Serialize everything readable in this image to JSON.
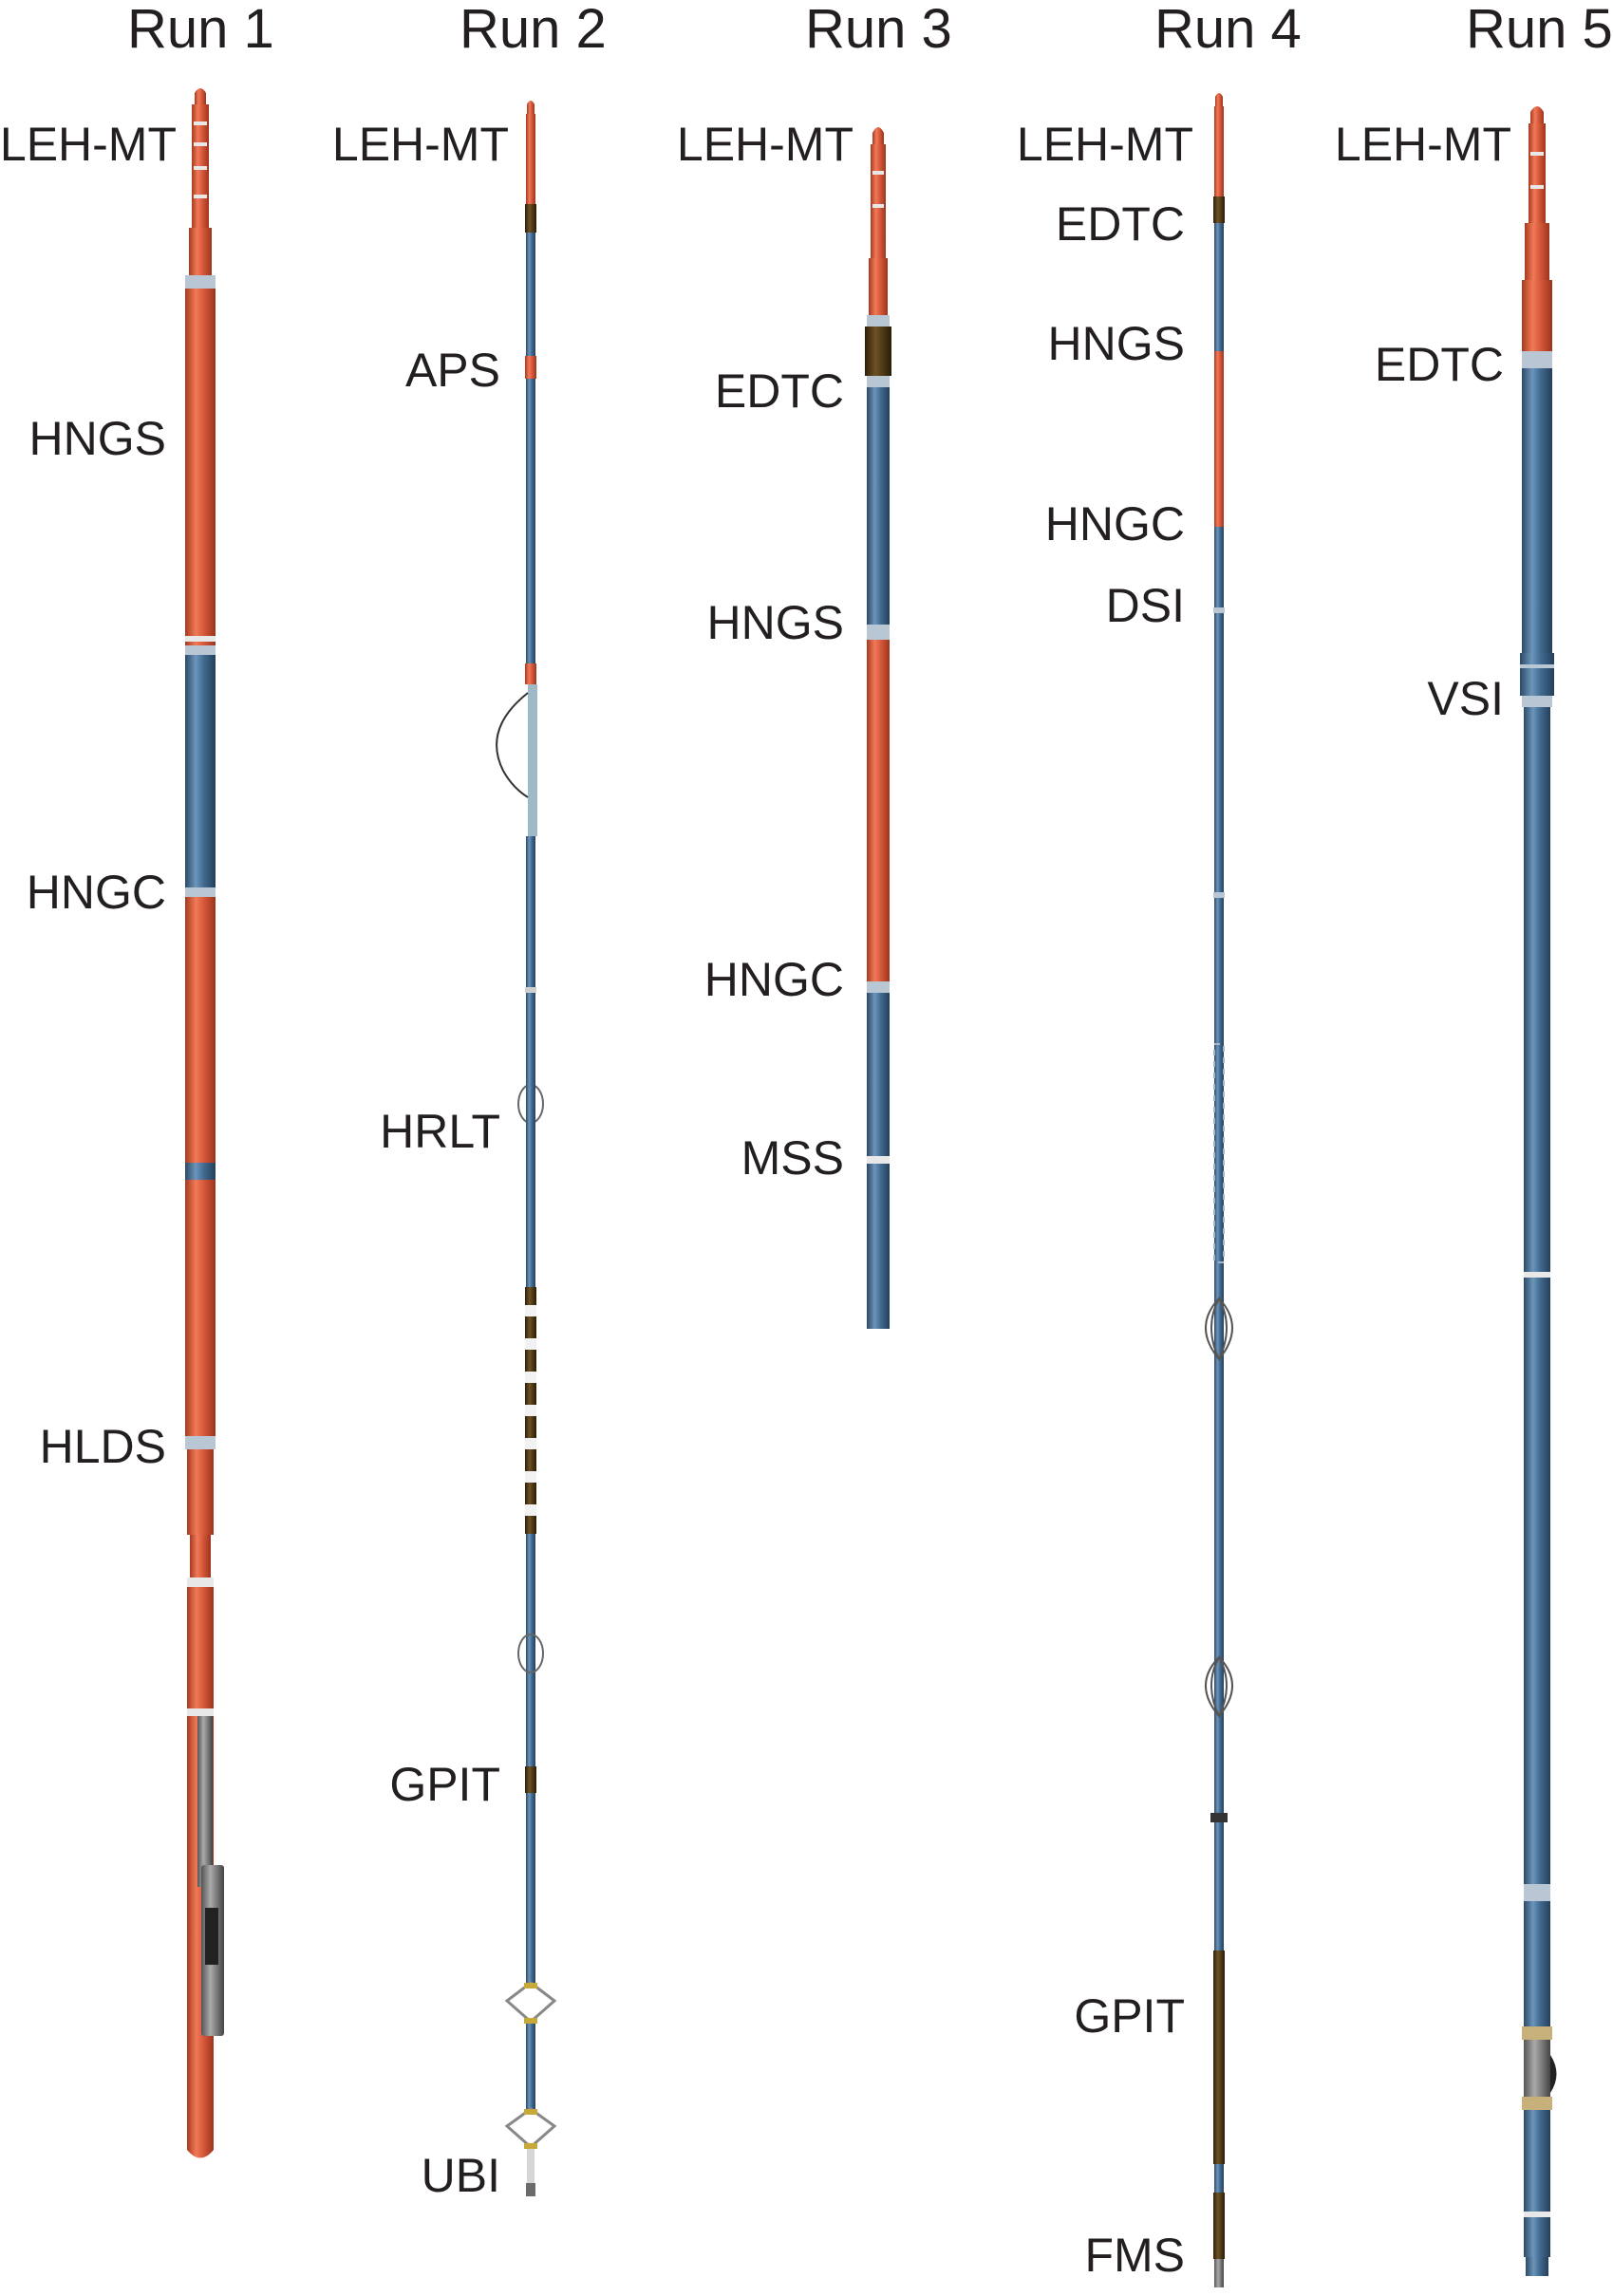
{
  "colors": {
    "red": "#d85a3c",
    "blue": "#426c93",
    "brown": "#4a3410",
    "joint": "#b9c7d4",
    "text": "#231f20"
  },
  "runs": [
    {
      "title": "Run 1",
      "labels": [
        "LEH-MT",
        "HNGS",
        "HNGC",
        "HLDS"
      ]
    },
    {
      "title": "Run 2",
      "labels": [
        "LEH-MT",
        "APS",
        "HRLT",
        "GPIT",
        "UBI"
      ]
    },
    {
      "title": "Run 3",
      "labels": [
        "LEH-MT",
        "EDTC",
        "HNGS",
        "HNGC",
        "MSS"
      ]
    },
    {
      "title": "Run 4",
      "labels": [
        "LEH-MT",
        "EDTC",
        "HNGS",
        "HNGC",
        "DSI",
        "GPIT",
        "FMS"
      ]
    },
    {
      "title": "Run 5",
      "labels": [
        "LEH-MT",
        "EDTC",
        "VSI"
      ]
    }
  ]
}
